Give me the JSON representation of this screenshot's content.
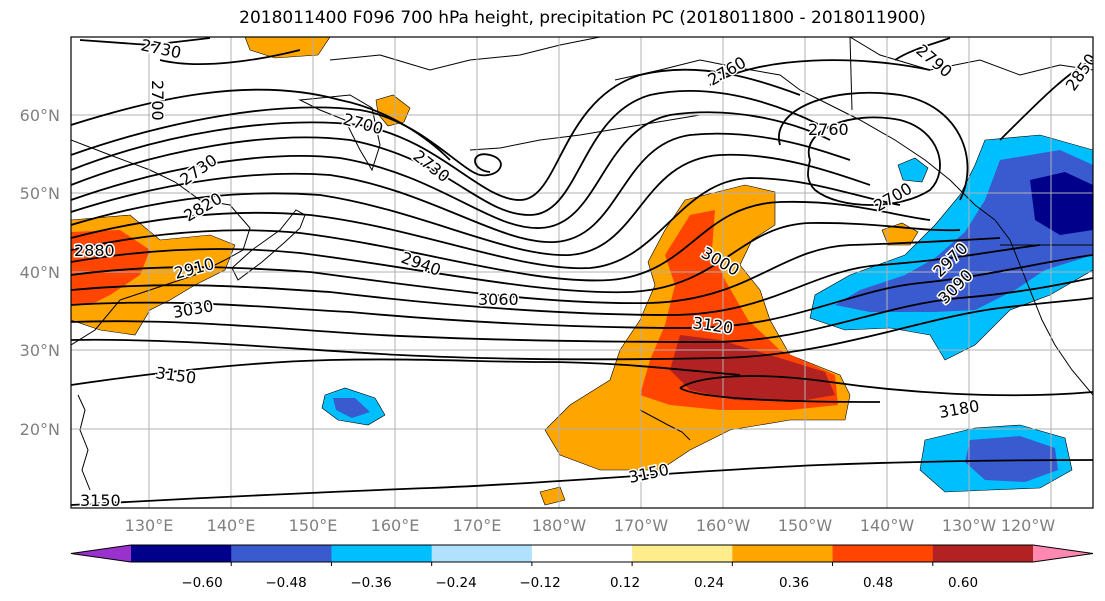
{
  "title": "2018011400 F096 700 hPa height, precipitation PC (2018011800 - 2018011900)",
  "map": {
    "projection": "cylindrical",
    "region": {
      "lon_min": 120,
      "lon_max": 245,
      "lat_min": 10,
      "lat_max": 70
    },
    "gridlines": true,
    "lon_ticks": [
      "130°E",
      "140°E",
      "150°E",
      "160°E",
      "170°E",
      "180°W",
      "170°W",
      "160°W",
      "150°W",
      "140°W",
      "130°W",
      "120°W"
    ],
    "lat_ticks": [
      "60°N",
      "50°N",
      "40°N",
      "30°N",
      "20°N"
    ],
    "contour_field": "700 hPa height",
    "contour_labels": [
      "2730",
      "2700",
      "2760",
      "2790",
      "2850",
      "2880",
      "2910",
      "2820",
      "2730",
      "2700",
      "2760",
      "2730",
      "2700",
      "2940",
      "3000",
      "3060",
      "3030",
      "3120",
      "2970",
      "3090",
      "3150",
      "3150",
      "3180",
      "3150"
    ],
    "shaded_field": "precipitation PC"
  },
  "colorbar": {
    "ticks": [
      "−0.60",
      "−0.48",
      "−0.36",
      "−0.24",
      "−0.12",
      "0.12",
      "0.24",
      "0.36",
      "0.48",
      "0.60"
    ],
    "colors": [
      "#9932cc",
      "#00008b",
      "#3a5bcf",
      "#00bfff",
      "#b0e2ff",
      "#ffffff",
      "#ffec8b",
      "#ffa500",
      "#ff4500",
      "#b22222",
      "#ff88b0"
    ]
  }
}
